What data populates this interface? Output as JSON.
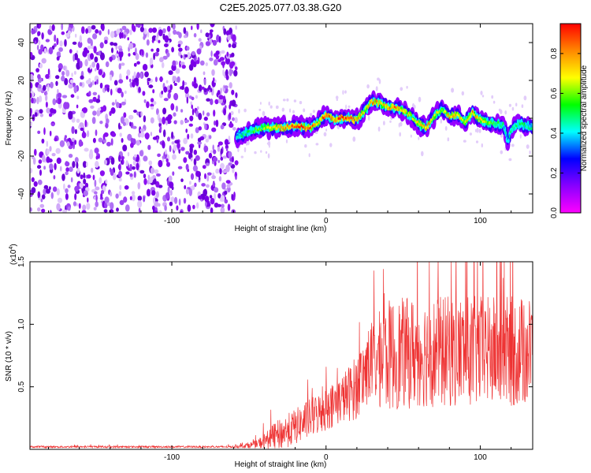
{
  "title": "C2E5.2025.077.03.38.G20",
  "chart_data": [
    {
      "type": "heatmap",
      "xlabel": "Height of straight line (km)",
      "ylabel": "Frequency (Hz)",
      "xlim": [
        -192,
        134
      ],
      "ylim": [
        -50,
        50
      ],
      "xticks": [
        -100,
        0,
        100
      ],
      "yticks": [
        -40,
        -20,
        0,
        20,
        40
      ],
      "colorbar": {
        "label": "Normalized spectral amplitude",
        "range": [
          0,
          0.95
        ],
        "ticks": [
          0.0,
          0.2,
          0.4,
          0.6,
          0.8
        ],
        "colors": [
          "#ff00ff",
          "#8800ff",
          "#0000ff",
          "#00ffff",
          "#00ff00",
          "#ffff00",
          "#ff8800",
          "#ff0000"
        ]
      },
      "noise_region": {
        "x": [
          -192,
          -58
        ],
        "amplitude": 0.15
      },
      "ridge": {
        "x": [
          -58,
          -50,
          -40,
          -30,
          -20,
          -10,
          -5,
          0,
          5,
          10,
          15,
          20,
          25,
          30,
          35,
          40,
          45,
          50,
          55,
          60,
          65,
          70,
          75,
          80,
          85,
          90,
          95,
          100,
          105,
          110,
          115,
          118,
          120,
          125,
          130,
          134
        ],
        "y": [
          -10,
          -7,
          -5,
          -5,
          -4,
          -5,
          -2,
          2,
          -1,
          0,
          0,
          -1,
          4,
          9,
          8,
          6,
          6,
          4,
          1,
          -3,
          -5,
          1,
          5,
          1,
          2,
          -2,
          3,
          -1,
          -2,
          -3,
          -4,
          -12,
          -6,
          -3,
          -4,
          -5
        ],
        "amplitude": [
          0.45,
          0.5,
          0.65,
          0.8,
          0.9,
          0.85,
          0.75,
          0.95,
          0.8,
          0.95,
          0.9,
          0.8,
          0.7,
          0.85,
          0.7,
          0.8,
          0.85,
          0.75,
          0.65,
          0.7,
          0.8,
          0.7,
          0.6,
          0.8,
          0.75,
          0.65,
          0.8,
          0.7,
          0.6,
          0.55,
          0.5,
          0.4,
          0.5,
          0.5,
          0.5,
          0.45
        ]
      }
    },
    {
      "type": "line",
      "xlabel": "Height of straight line (km)",
      "ylabel": "SNR (10 * v/v)",
      "scale_label": "(x10",
      "scale_exp": "4",
      "xlim": [
        -192,
        134
      ],
      "ylim": [
        0,
        1.5
      ],
      "xticks": [
        -100,
        0,
        100
      ],
      "yticks": [
        0.5,
        1.0,
        1.5
      ],
      "ytick_labels": [
        "0.5",
        "1.0",
        "1.5"
      ],
      "color": "#ee3333",
      "trend": {
        "x": [
          -192,
          -60,
          -45,
          -30,
          -20,
          -10,
          0,
          10,
          20,
          28,
          40,
          60,
          80,
          100,
          120,
          134
        ],
        "y": [
          0.02,
          0.02,
          0.04,
          0.12,
          0.18,
          0.25,
          0.32,
          0.4,
          0.5,
          0.68,
          0.75,
          0.78,
          0.78,
          0.78,
          0.78,
          0.78
        ]
      },
      "spread": {
        "x": [
          -192,
          -60,
          -45,
          -30,
          -10,
          10,
          28,
          40,
          134
        ],
        "y": [
          0.005,
          0.005,
          0.02,
          0.08,
          0.1,
          0.12,
          0.2,
          0.28,
          0.28
        ]
      }
    }
  ]
}
